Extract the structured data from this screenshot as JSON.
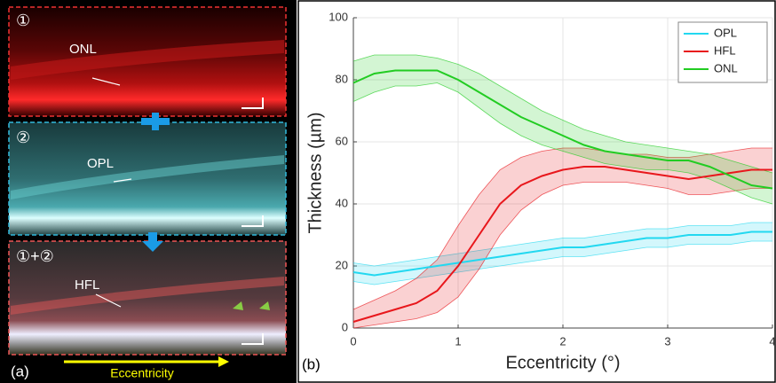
{
  "panel_a": {
    "label": "(a)",
    "step1": "①",
    "step1_layer": "ONL",
    "step2": "②",
    "step2_layer": "OPL",
    "step3": "①+②",
    "step3_layer": "HFL",
    "axis_label": "Eccentricity"
  },
  "chart_data": {
    "type": "line",
    "panel_label": "(b)",
    "xlabel": "Eccentricity (°)",
    "ylabel": "Thickness (µm)",
    "x": [
      0,
      0.2,
      0.4,
      0.6,
      0.8,
      1.0,
      1.2,
      1.4,
      1.6,
      1.8,
      2.0,
      2.2,
      2.4,
      2.6,
      2.8,
      3.0,
      3.2,
      3.4,
      3.6,
      3.8,
      4.0
    ],
    "xlim": [
      0,
      4
    ],
    "xticks": [
      0,
      1,
      2,
      3,
      4
    ],
    "ylim": [
      0,
      100
    ],
    "yticks": [
      0,
      20,
      40,
      60,
      80,
      100
    ],
    "grid": true,
    "legend": "upper right",
    "series": [
      {
        "name": "OPL",
        "color": "#22d8f0",
        "values": [
          18,
          17,
          18,
          19,
          20,
          21,
          22,
          23,
          24,
          25,
          26,
          26,
          27,
          28,
          29,
          29,
          30,
          30,
          30,
          31,
          31
        ],
        "upper": [
          21,
          20,
          21,
          22,
          23,
          24,
          25,
          26,
          27,
          28,
          29,
          29,
          30,
          31,
          32,
          32,
          33,
          33,
          33,
          34,
          34
        ],
        "lower": [
          15,
          14,
          15,
          16,
          17,
          18,
          19,
          20,
          21,
          22,
          23,
          23,
          24,
          25,
          26,
          26,
          27,
          27,
          27,
          28,
          28
        ]
      },
      {
        "name": "HFL",
        "color": "#e8171c",
        "values": [
          2,
          4,
          6,
          8,
          12,
          20,
          30,
          40,
          46,
          49,
          51,
          52,
          52,
          51,
          50,
          49,
          48,
          49,
          50,
          51,
          51
        ],
        "upper": [
          6,
          9,
          12,
          16,
          22,
          33,
          43,
          51,
          55,
          57,
          58,
          58,
          57,
          56,
          56,
          55,
          55,
          56,
          57,
          58,
          58
        ],
        "lower": [
          0,
          1,
          2,
          3,
          5,
          10,
          19,
          30,
          38,
          43,
          46,
          47,
          47,
          47,
          46,
          45,
          43,
          43,
          44,
          45,
          45
        ]
      },
      {
        "name": "ONL",
        "color": "#22cc22",
        "values": [
          79,
          82,
          83,
          83,
          83,
          80,
          76,
          72,
          68,
          65,
          62,
          59,
          57,
          56,
          55,
          54,
          54,
          52,
          49,
          46,
          45
        ],
        "upper": [
          86,
          88,
          88,
          88,
          87,
          85,
          82,
          78,
          74,
          70,
          67,
          64,
          62,
          60,
          59,
          58,
          57,
          56,
          54,
          52,
          50
        ],
        "lower": [
          73,
          76,
          78,
          78,
          79,
          76,
          71,
          66,
          62,
          59,
          57,
          55,
          53,
          52,
          51,
          51,
          50,
          48,
          45,
          42,
          40
        ]
      }
    ]
  }
}
